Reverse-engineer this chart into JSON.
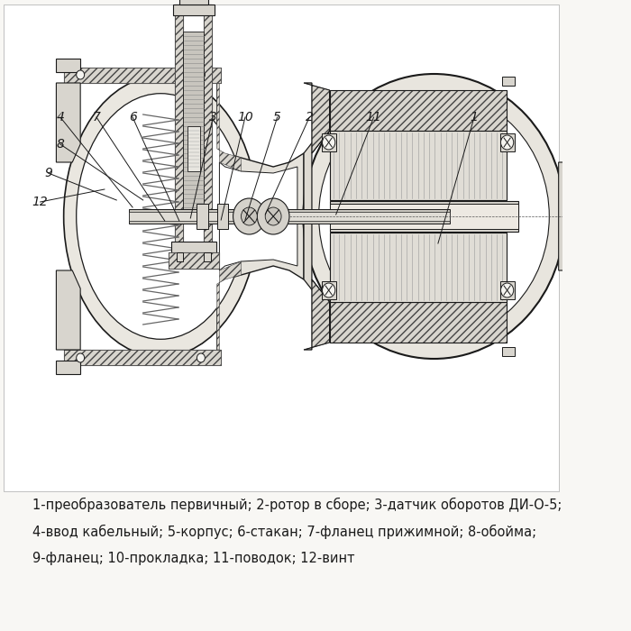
{
  "bg_color": "#f8f7f4",
  "drawing_bg": "#ffffff",
  "caption_lines": [
    "1-преобразователь первичный; 2-ротор в сборе; 3-датчик оборотов ДИ-О-5;",
    "4-ввод кабельный; 5-корпус; 6-стакан; 7-фланец прижимной; 8-обойма;",
    "9-фланец; 10-прокладка; 11-поводок; 12-винт"
  ],
  "caption_fontsize": 10.5,
  "text_color": "#1a1a1a",
  "line_color": "#1a1a1a",
  "hatch_color": "#444444",
  "metal_fill": "#d8d5ce",
  "white_fill": "#f5f4f0",
  "labels": {
    "4": [
      75,
      390,
      150,
      450
    ],
    "7": [
      110,
      390,
      185,
      437
    ],
    "6": [
      155,
      390,
      210,
      437
    ],
    "3": [
      265,
      390,
      258,
      430
    ],
    "10": [
      305,
      390,
      288,
      428
    ],
    "5": [
      345,
      390,
      310,
      430
    ],
    "2": [
      385,
      390,
      380,
      370
    ],
    "11": [
      460,
      390,
      420,
      420
    ],
    "1": [
      575,
      390,
      530,
      350
    ],
    "8": [
      95,
      420,
      175,
      445
    ],
    "9": [
      72,
      445,
      140,
      455
    ],
    "12": [
      58,
      465,
      120,
      480
    ]
  }
}
